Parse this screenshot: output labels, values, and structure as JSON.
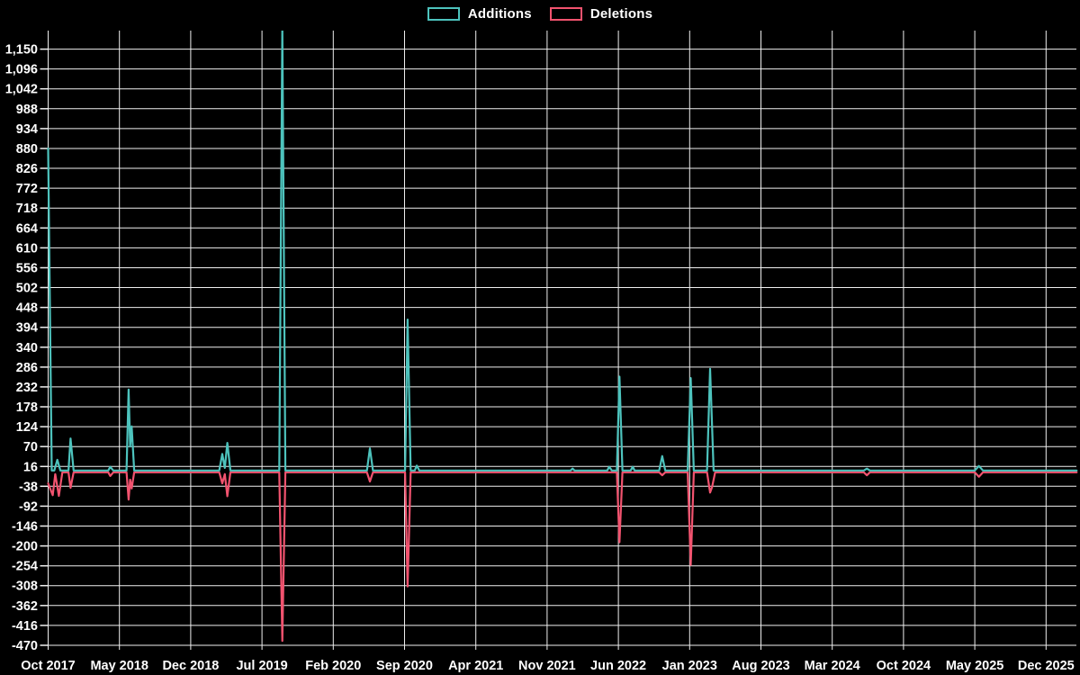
{
  "legend": {
    "items": [
      {
        "label": "Additions",
        "color": "#4dc3bd"
      },
      {
        "label": "Deletions",
        "color": "#f2536f"
      }
    ]
  },
  "colors": {
    "background": "#000000",
    "gridline": "#efefef",
    "label_text": "#ffffff",
    "additions": "#4dc3bd",
    "deletions": "#f2536f"
  },
  "chart_data": {
    "type": "line",
    "title": "",
    "xlabel": "",
    "ylabel": "",
    "grid": true,
    "legend_position": "top-center",
    "x_axis": {
      "unit": "months since Oct 2017",
      "range": [
        0,
        98
      ],
      "tick_labels": [
        "Oct 2017",
        "May 2018",
        "Dec 2018",
        "Jul 2019",
        "Feb 2020",
        "Sep 2020",
        "Apr 2021",
        "Nov 2021",
        "Jun 2022",
        "Jan 2023",
        "Aug 2023",
        "Mar 2024",
        "Oct 2024",
        "May 2025",
        "Dec 2025"
      ],
      "months_between_ticks": 7
    },
    "y_axis": {
      "min": -470,
      "max": 1150,
      "tick_step": 54,
      "ticks": [
        1150,
        1096,
        1042,
        988,
        934,
        880,
        826,
        772,
        718,
        664,
        610,
        556,
        502,
        448,
        394,
        340,
        286,
        232,
        178,
        124,
        70,
        16,
        -38,
        -92,
        -146,
        -200,
        -254,
        -308,
        -362,
        -416,
        -470
      ]
    },
    "series": [
      {
        "name": "Additions",
        "color": "#4dc3bd",
        "baseline": 5,
        "points": [
          [
            0,
            880
          ],
          [
            0.35,
            5
          ],
          [
            0.6,
            5
          ],
          [
            0.9,
            34
          ],
          [
            1.2,
            5
          ],
          [
            2.0,
            5
          ],
          [
            2.2,
            92
          ],
          [
            2.5,
            5
          ],
          [
            5.9,
            5
          ],
          [
            6.1,
            15
          ],
          [
            6.4,
            5
          ],
          [
            7.7,
            5
          ],
          [
            7.9,
            225
          ],
          [
            8.05,
            70
          ],
          [
            8.2,
            125
          ],
          [
            8.45,
            5
          ],
          [
            16.8,
            5
          ],
          [
            17.1,
            50
          ],
          [
            17.35,
            12
          ],
          [
            17.6,
            80
          ],
          [
            17.9,
            5
          ],
          [
            22.7,
            5
          ],
          [
            23.0,
            1210
          ],
          [
            23.3,
            5
          ],
          [
            31.3,
            5
          ],
          [
            31.6,
            65
          ],
          [
            31.9,
            5
          ],
          [
            35.05,
            5
          ],
          [
            35.3,
            415
          ],
          [
            35.6,
            5
          ],
          [
            36.0,
            5
          ],
          [
            36.2,
            18
          ],
          [
            36.45,
            5
          ],
          [
            51.3,
            5
          ],
          [
            51.5,
            10
          ],
          [
            51.7,
            5
          ],
          [
            54.9,
            5
          ],
          [
            55.1,
            15
          ],
          [
            55.35,
            5
          ],
          [
            55.85,
            5
          ],
          [
            56.1,
            260
          ],
          [
            56.4,
            5
          ],
          [
            57.2,
            5
          ],
          [
            57.4,
            15
          ],
          [
            57.6,
            5
          ],
          [
            60.0,
            5
          ],
          [
            60.3,
            44
          ],
          [
            60.6,
            5
          ],
          [
            62.8,
            5
          ],
          [
            63.1,
            256
          ],
          [
            63.4,
            5
          ],
          [
            64.7,
            5
          ],
          [
            65.0,
            281
          ],
          [
            65.35,
            5
          ],
          [
            80.1,
            5
          ],
          [
            80.4,
            10
          ],
          [
            80.7,
            5
          ],
          [
            91.0,
            5
          ],
          [
            91.4,
            17
          ],
          [
            91.8,
            5
          ],
          [
            101,
            5
          ]
        ]
      },
      {
        "name": "Deletions",
        "color": "#f2536f",
        "baseline": 0,
        "points": [
          [
            0,
            -30
          ],
          [
            0.45,
            -62
          ],
          [
            0.7,
            -5
          ],
          [
            1.05,
            -64
          ],
          [
            1.4,
            0
          ],
          [
            2.0,
            0
          ],
          [
            2.2,
            -42
          ],
          [
            2.5,
            0
          ],
          [
            5.9,
            0
          ],
          [
            6.1,
            -10
          ],
          [
            6.4,
            0
          ],
          [
            7.7,
            0
          ],
          [
            7.9,
            -74
          ],
          [
            8.05,
            -20
          ],
          [
            8.2,
            -44
          ],
          [
            8.45,
            0
          ],
          [
            16.8,
            0
          ],
          [
            17.1,
            -30
          ],
          [
            17.35,
            -5
          ],
          [
            17.6,
            -65
          ],
          [
            17.9,
            0
          ],
          [
            22.7,
            0
          ],
          [
            23.0,
            -458
          ],
          [
            23.3,
            0
          ],
          [
            31.3,
            0
          ],
          [
            31.6,
            -25
          ],
          [
            31.9,
            0
          ],
          [
            35.05,
            0
          ],
          [
            35.3,
            -310
          ],
          [
            35.6,
            0
          ],
          [
            55.85,
            0
          ],
          [
            56.1,
            -190
          ],
          [
            56.4,
            0
          ],
          [
            60.0,
            0
          ],
          [
            60.3,
            -8
          ],
          [
            60.6,
            0
          ],
          [
            62.8,
            0
          ],
          [
            63.1,
            -252
          ],
          [
            63.4,
            0
          ],
          [
            64.7,
            0
          ],
          [
            65.0,
            -55
          ],
          [
            65.2,
            -40
          ],
          [
            65.5,
            0
          ],
          [
            80.1,
            0
          ],
          [
            80.4,
            -8
          ],
          [
            80.7,
            0
          ],
          [
            91.0,
            0
          ],
          [
            91.4,
            -12
          ],
          [
            91.8,
            0
          ],
          [
            101,
            0
          ]
        ]
      }
    ]
  }
}
